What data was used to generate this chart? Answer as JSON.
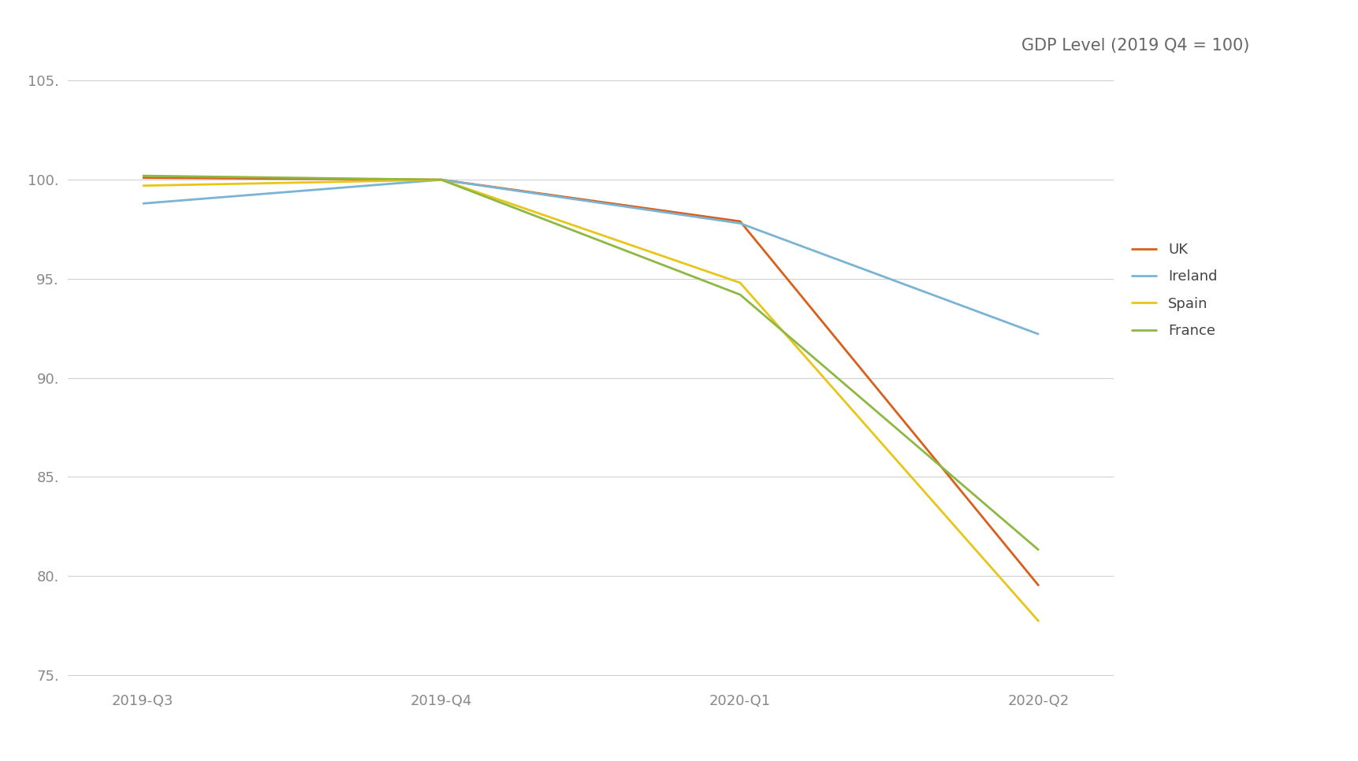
{
  "title": "GDP Level (2019 Q4 = 100)",
  "x_labels": [
    "2019-Q3",
    "2019-Q4",
    "2020-Q1",
    "2020-Q2"
  ],
  "series": {
    "UK": [
      100.1,
      100.0,
      97.9,
      79.5
    ],
    "Ireland": [
      98.8,
      100.0,
      97.8,
      92.2
    ],
    "Spain": [
      99.7,
      100.0,
      94.8,
      77.7
    ],
    "France": [
      100.2,
      100.0,
      94.2,
      81.3
    ]
  },
  "colors": {
    "UK": "#d95f1a",
    "Ireland": "#7ab4d4",
    "Spain": "#e8c619",
    "France": "#8db843"
  },
  "ylim": [
    74.5,
    106
  ],
  "yticks": [
    75,
    80,
    85,
    90,
    95,
    100,
    105
  ],
  "ytick_labels": [
    "75.",
    "80.",
    "85.",
    "90.",
    "95.",
    "100.",
    "105."
  ],
  "linewidth": 2.0,
  "background_color": "#ffffff",
  "title_fontsize": 15,
  "tick_fontsize": 13,
  "tick_color": "#888888",
  "legend_fontsize": 13,
  "legend_text_color": "#444444",
  "grid_color": "#d0d0d0",
  "title_color": "#666666"
}
